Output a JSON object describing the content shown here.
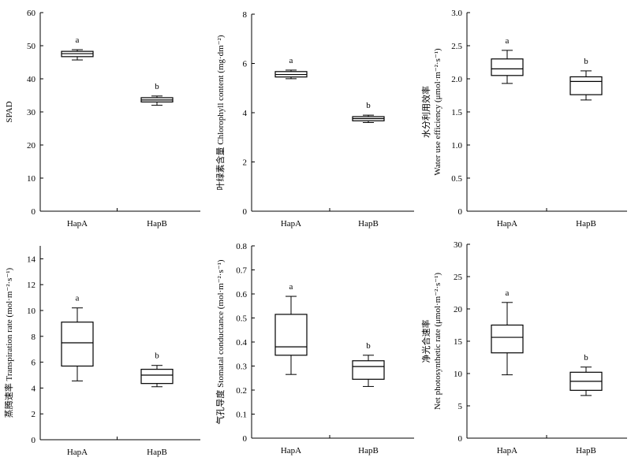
{
  "chart_data": [
    {
      "type": "box",
      "ylabel": "SPAD",
      "ylim": [
        0,
        60
      ],
      "yticks": [
        "0",
        "10",
        "20",
        "30",
        "40",
        "50",
        "60"
      ],
      "categories": [
        "HapA",
        "HapB"
      ],
      "boxes": [
        {
          "category": "HapA",
          "min": 45.7,
          "q1": 46.7,
          "median": 47.6,
          "q3": 48.3,
          "max": 48.8,
          "label": "a"
        },
        {
          "category": "HapB",
          "min": 32.0,
          "q1": 33.0,
          "median": 33.6,
          "q3": 34.3,
          "max": 34.8,
          "label": "b"
        }
      ]
    },
    {
      "type": "box",
      "ylabel": "叶绿素含量 Chlorophyll content (mg·dm⁻²)",
      "ylim": [
        0,
        8
      ],
      "yticks": [
        "0",
        "2",
        "4",
        "6",
        "8"
      ],
      "categories": [
        "HapA",
        "HapB"
      ],
      "boxes": [
        {
          "category": "HapA",
          "min": 5.38,
          "q1": 5.45,
          "median": 5.55,
          "q3": 5.67,
          "max": 5.73,
          "label": "a"
        },
        {
          "category": "HapB",
          "min": 3.6,
          "q1": 3.67,
          "median": 3.76,
          "q3": 3.84,
          "max": 3.9,
          "label": "b"
        }
      ]
    },
    {
      "type": "box",
      "ylabel_cn": "水分利用效率",
      "ylabel": "Water use efficiency (μmol·m⁻²·s⁻¹)",
      "ylim": [
        0,
        3.0
      ],
      "yticks": [
        "0",
        "0.5",
        "1.0",
        "1.5",
        "2.0",
        "2.5",
        "3.0"
      ],
      "categories": [
        "HapA",
        "HapB"
      ],
      "boxes": [
        {
          "category": "HapA",
          "min": 1.93,
          "q1": 2.05,
          "median": 2.15,
          "q3": 2.3,
          "max": 2.43,
          "label": "a"
        },
        {
          "category": "HapB",
          "min": 1.68,
          "q1": 1.76,
          "median": 1.96,
          "q3": 2.03,
          "max": 2.12,
          "label": "b"
        }
      ]
    },
    {
      "type": "box",
      "ylabel": "蒸腾速率 Transpiration rate (mol·m⁻²·s⁻¹)",
      "ylim": [
        0,
        15
      ],
      "yticks": [
        "0",
        "2",
        "4",
        "6",
        "8",
        "10",
        "12",
        "14"
      ],
      "categories": [
        "HapA",
        "HapB"
      ],
      "boxes": [
        {
          "category": "HapA",
          "min": 4.55,
          "q1": 5.7,
          "median": 7.5,
          "q3": 9.1,
          "max": 10.2,
          "label": "a"
        },
        {
          "category": "HapB",
          "min": 4.1,
          "q1": 4.35,
          "median": 5.0,
          "q3": 5.45,
          "max": 5.75,
          "label": "b"
        }
      ]
    },
    {
      "type": "box",
      "ylabel": "气孔导度 Stomatal conductance (mol·m⁻²·s⁻¹)",
      "ylim": [
        0,
        0.8
      ],
      "yticks": [
        "0",
        "0.1",
        "0.2",
        "0.3",
        "0.4",
        "0.5",
        "0.6",
        "0.7",
        "0.8"
      ],
      "categories": [
        "HapA",
        "HapB"
      ],
      "boxes": [
        {
          "category": "HapA",
          "min": 0.265,
          "q1": 0.345,
          "median": 0.38,
          "q3": 0.515,
          "max": 0.59,
          "label": "a"
        },
        {
          "category": "HapB",
          "min": 0.215,
          "q1": 0.245,
          "median": 0.298,
          "q3": 0.322,
          "max": 0.345,
          "label": "b"
        }
      ]
    },
    {
      "type": "box",
      "ylabel_cn": "净光合速率",
      "ylabel": "Net photosynthetic rate (μmol·m⁻²·s⁻¹)",
      "ylim": [
        0,
        30
      ],
      "yticks": [
        "0",
        "5",
        "10",
        "15",
        "20",
        "25",
        "30"
      ],
      "categories": [
        "HapA",
        "HapB"
      ],
      "boxes": [
        {
          "category": "HapA",
          "min": 9.8,
          "q1": 13.2,
          "median": 15.6,
          "q3": 17.5,
          "max": 21.0,
          "label": "a"
        },
        {
          "category": "HapB",
          "min": 6.6,
          "q1": 7.4,
          "median": 8.8,
          "q3": 10.2,
          "max": 11.0,
          "label": "b"
        }
      ]
    }
  ]
}
